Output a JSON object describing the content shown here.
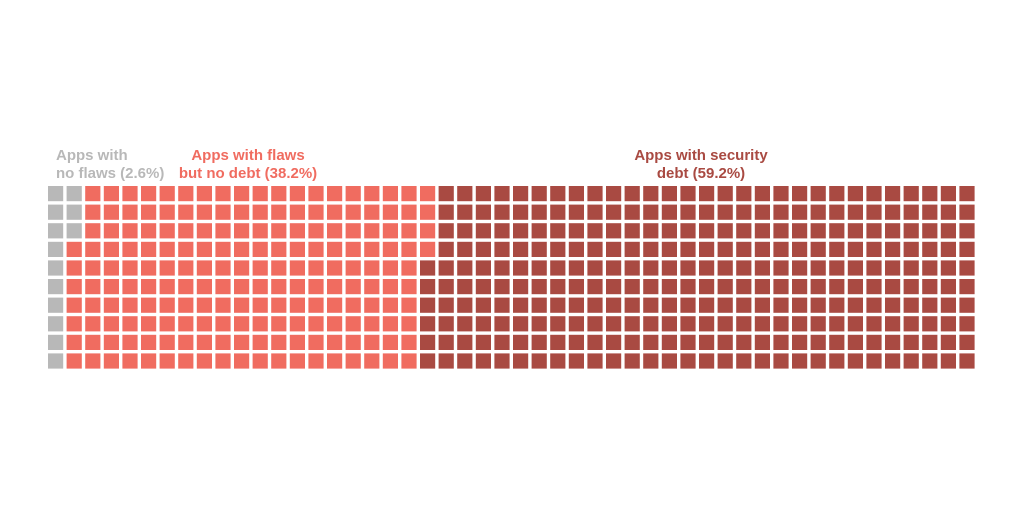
{
  "chart_data": {
    "type": "waffle",
    "rows": 10,
    "columns": 50,
    "series": [
      {
        "label_line1": "Apps with",
        "label_line2": "no flaws (2.6%)",
        "percent": 2.6,
        "count": 13,
        "color": "#b8b8b8"
      },
      {
        "label_line1": "Apps with flaws",
        "label_line2": "but no debt (38.2%)",
        "percent": 38.2,
        "count": 191,
        "color": "#f06c60"
      },
      {
        "label_line1": "Apps with security",
        "label_line2": "debt (59.2%)",
        "percent": 59.2,
        "count": 296,
        "color": "#a94a42"
      }
    ]
  }
}
